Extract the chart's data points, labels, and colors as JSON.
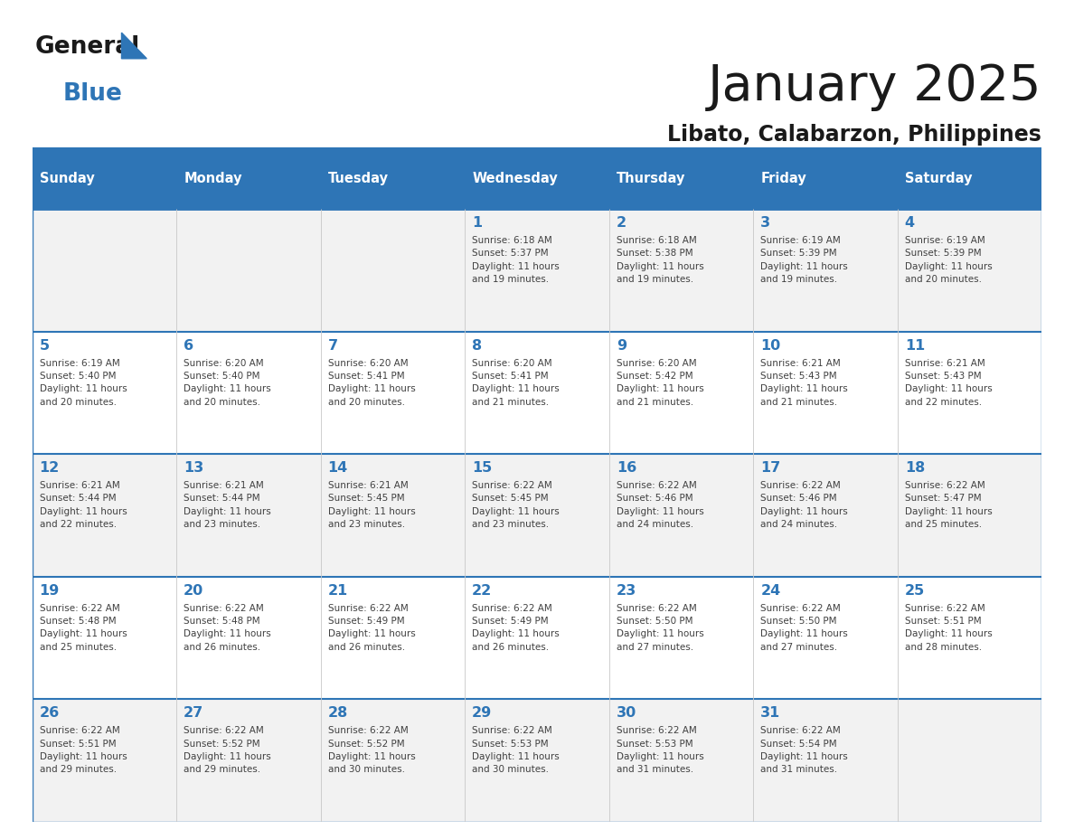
{
  "title": "January 2025",
  "subtitle": "Libato, Calabarzon, Philippines",
  "days_of_week": [
    "Sunday",
    "Monday",
    "Tuesday",
    "Wednesday",
    "Thursday",
    "Friday",
    "Saturday"
  ],
  "header_bg": "#2E75B6",
  "header_text_color": "#FFFFFF",
  "row_bg_odd": "#F2F2F2",
  "row_bg_even": "#FFFFFF",
  "border_color": "#2E75B6",
  "day_number_color": "#2E75B6",
  "cell_text_color": "#404040",
  "title_color": "#1a1a1a",
  "subtitle_color": "#1a1a1a",
  "logo_general_color": "#1a1a1a",
  "logo_blue_color": "#2E75B6",
  "calendar": [
    [
      {
        "day": null,
        "info": null
      },
      {
        "day": null,
        "info": null
      },
      {
        "day": null,
        "info": null
      },
      {
        "day": 1,
        "info": "Sunrise: 6:18 AM\nSunset: 5:37 PM\nDaylight: 11 hours\nand 19 minutes."
      },
      {
        "day": 2,
        "info": "Sunrise: 6:18 AM\nSunset: 5:38 PM\nDaylight: 11 hours\nand 19 minutes."
      },
      {
        "day": 3,
        "info": "Sunrise: 6:19 AM\nSunset: 5:39 PM\nDaylight: 11 hours\nand 19 minutes."
      },
      {
        "day": 4,
        "info": "Sunrise: 6:19 AM\nSunset: 5:39 PM\nDaylight: 11 hours\nand 20 minutes."
      }
    ],
    [
      {
        "day": 5,
        "info": "Sunrise: 6:19 AM\nSunset: 5:40 PM\nDaylight: 11 hours\nand 20 minutes."
      },
      {
        "day": 6,
        "info": "Sunrise: 6:20 AM\nSunset: 5:40 PM\nDaylight: 11 hours\nand 20 minutes."
      },
      {
        "day": 7,
        "info": "Sunrise: 6:20 AM\nSunset: 5:41 PM\nDaylight: 11 hours\nand 20 minutes."
      },
      {
        "day": 8,
        "info": "Sunrise: 6:20 AM\nSunset: 5:41 PM\nDaylight: 11 hours\nand 21 minutes."
      },
      {
        "day": 9,
        "info": "Sunrise: 6:20 AM\nSunset: 5:42 PM\nDaylight: 11 hours\nand 21 minutes."
      },
      {
        "day": 10,
        "info": "Sunrise: 6:21 AM\nSunset: 5:43 PM\nDaylight: 11 hours\nand 21 minutes."
      },
      {
        "day": 11,
        "info": "Sunrise: 6:21 AM\nSunset: 5:43 PM\nDaylight: 11 hours\nand 22 minutes."
      }
    ],
    [
      {
        "day": 12,
        "info": "Sunrise: 6:21 AM\nSunset: 5:44 PM\nDaylight: 11 hours\nand 22 minutes."
      },
      {
        "day": 13,
        "info": "Sunrise: 6:21 AM\nSunset: 5:44 PM\nDaylight: 11 hours\nand 23 minutes."
      },
      {
        "day": 14,
        "info": "Sunrise: 6:21 AM\nSunset: 5:45 PM\nDaylight: 11 hours\nand 23 minutes."
      },
      {
        "day": 15,
        "info": "Sunrise: 6:22 AM\nSunset: 5:45 PM\nDaylight: 11 hours\nand 23 minutes."
      },
      {
        "day": 16,
        "info": "Sunrise: 6:22 AM\nSunset: 5:46 PM\nDaylight: 11 hours\nand 24 minutes."
      },
      {
        "day": 17,
        "info": "Sunrise: 6:22 AM\nSunset: 5:46 PM\nDaylight: 11 hours\nand 24 minutes."
      },
      {
        "day": 18,
        "info": "Sunrise: 6:22 AM\nSunset: 5:47 PM\nDaylight: 11 hours\nand 25 minutes."
      }
    ],
    [
      {
        "day": 19,
        "info": "Sunrise: 6:22 AM\nSunset: 5:48 PM\nDaylight: 11 hours\nand 25 minutes."
      },
      {
        "day": 20,
        "info": "Sunrise: 6:22 AM\nSunset: 5:48 PM\nDaylight: 11 hours\nand 26 minutes."
      },
      {
        "day": 21,
        "info": "Sunrise: 6:22 AM\nSunset: 5:49 PM\nDaylight: 11 hours\nand 26 minutes."
      },
      {
        "day": 22,
        "info": "Sunrise: 6:22 AM\nSunset: 5:49 PM\nDaylight: 11 hours\nand 26 minutes."
      },
      {
        "day": 23,
        "info": "Sunrise: 6:22 AM\nSunset: 5:50 PM\nDaylight: 11 hours\nand 27 minutes."
      },
      {
        "day": 24,
        "info": "Sunrise: 6:22 AM\nSunset: 5:50 PM\nDaylight: 11 hours\nand 27 minutes."
      },
      {
        "day": 25,
        "info": "Sunrise: 6:22 AM\nSunset: 5:51 PM\nDaylight: 11 hours\nand 28 minutes."
      }
    ],
    [
      {
        "day": 26,
        "info": "Sunrise: 6:22 AM\nSunset: 5:51 PM\nDaylight: 11 hours\nand 29 minutes."
      },
      {
        "day": 27,
        "info": "Sunrise: 6:22 AM\nSunset: 5:52 PM\nDaylight: 11 hours\nand 29 minutes."
      },
      {
        "day": 28,
        "info": "Sunrise: 6:22 AM\nSunset: 5:52 PM\nDaylight: 11 hours\nand 30 minutes."
      },
      {
        "day": 29,
        "info": "Sunrise: 6:22 AM\nSunset: 5:53 PM\nDaylight: 11 hours\nand 30 minutes."
      },
      {
        "day": 30,
        "info": "Sunrise: 6:22 AM\nSunset: 5:53 PM\nDaylight: 11 hours\nand 31 minutes."
      },
      {
        "day": 31,
        "info": "Sunrise: 6:22 AM\nSunset: 5:54 PM\nDaylight: 11 hours\nand 31 minutes."
      },
      {
        "day": null,
        "info": null
      }
    ]
  ]
}
